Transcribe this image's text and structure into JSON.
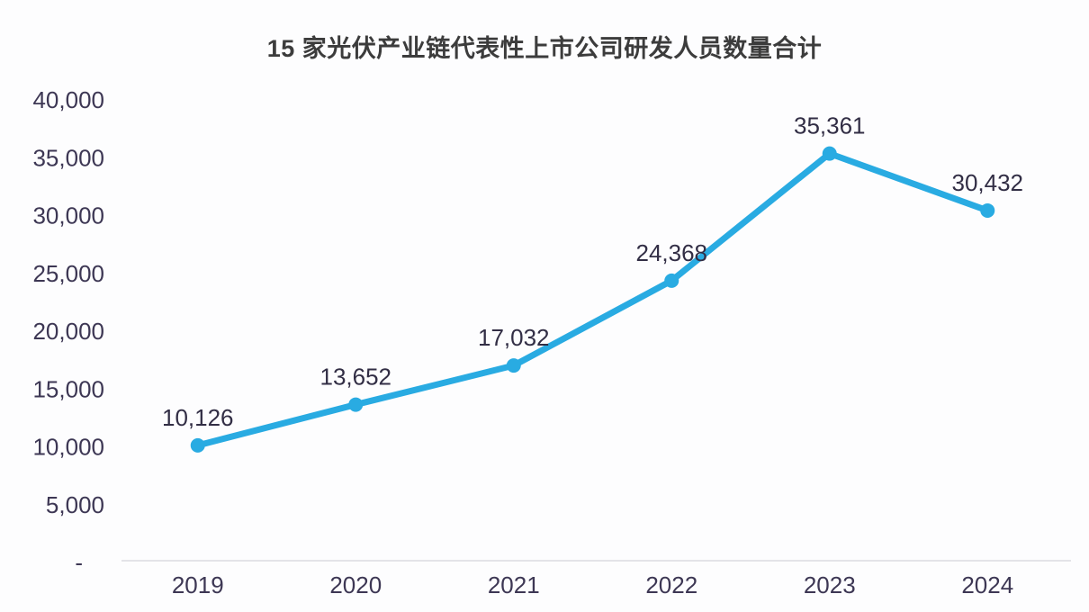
{
  "chart_data": {
    "type": "line",
    "title": "15 家光伏产业链代表性上市公司研发人员数量合计",
    "categories": [
      "2019",
      "2020",
      "2021",
      "2022",
      "2023",
      "2024"
    ],
    "values": [
      10126,
      13652,
      17032,
      24368,
      35361,
      30432
    ],
    "data_labels": [
      "10,126",
      "13,652",
      "17,032",
      "24,368",
      "35,361",
      "30,432"
    ],
    "y_ticks": [
      {
        "value": 40000,
        "label": "40,000"
      },
      {
        "value": 35000,
        "label": "35,000"
      },
      {
        "value": 30000,
        "label": "30,000"
      },
      {
        "value": 25000,
        "label": "25,000"
      },
      {
        "value": 20000,
        "label": "20,000"
      },
      {
        "value": 15000,
        "label": "15,000"
      },
      {
        "value": 10000,
        "label": "10,000"
      },
      {
        "value": 5000,
        "label": "5,000"
      },
      {
        "value": 0,
        "label": "-"
      }
    ],
    "ylim": [
      0,
      40000
    ],
    "xlabel": "",
    "ylabel": "",
    "grid": false,
    "legend": "none",
    "line_color": "#29ABE2",
    "marker_color": "#29ABE2",
    "axis_line_color": "#DBDBE1",
    "tick_label_color": "#3D3754",
    "data_label_color": "#322E45",
    "title_color": "#3C3C3C"
  }
}
